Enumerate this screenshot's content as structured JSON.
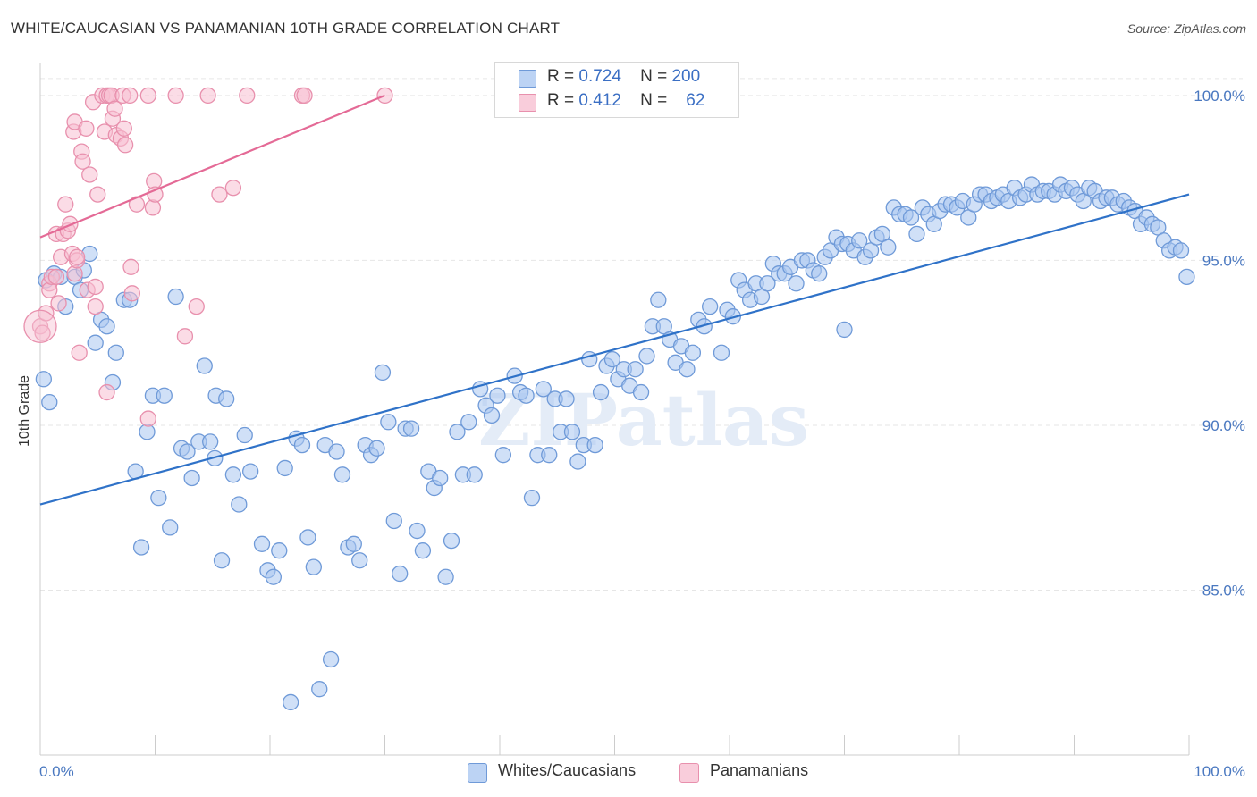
{
  "title": "WHITE/CAUCASIAN VS PANAMANIAN 10TH GRADE CORRELATION CHART",
  "source": "Source: ZipAtlas.com",
  "watermark": "ZIPatlas",
  "legend": {
    "rows": [
      {
        "r_label": "R =",
        "r_value": "0.724",
        "n_label": "N =",
        "n_value": "200"
      },
      {
        "r_label": "R =",
        "r_value": "0.412",
        "n_label": "N =",
        "n_value": "62"
      }
    ]
  },
  "colors": {
    "blue_fill": "#a9c6f0",
    "blue_stroke": "#6f9ad8",
    "blue_line": "#2f72c8",
    "pink_fill": "#f7c0d2",
    "pink_stroke": "#e890ad",
    "pink_line": "#e46a96",
    "grid": "#e6e6e6",
    "tick_text": "#4a78c0"
  },
  "chart_data": {
    "type": "scatter",
    "title": "WHITE/CAUCASIAN VS PANAMANIAN 10TH GRADE CORRELATION CHART",
    "xlabel": "",
    "ylabel": "10th Grade",
    "xlim": [
      0,
      100
    ],
    "ylim": [
      80.0,
      101.0
    ],
    "x_tick_labels": [
      "0.0%",
      "100.0%"
    ],
    "y_ticks": [
      85.0,
      90.0,
      95.0,
      100.0
    ],
    "y_tick_labels": [
      "85.0%",
      "90.0%",
      "95.0%",
      "100.0%"
    ],
    "grid": true,
    "legend_position": "top-center",
    "series": [
      {
        "name": "Whites/Caucasians",
        "color": "#a9c6f0",
        "trend": {
          "x": [
            0,
            100
          ],
          "y": [
            87.6,
            97.0
          ]
        },
        "points": [
          [
            0.3,
            91.4
          ],
          [
            0.8,
            90.7
          ],
          [
            1.2,
            94.6
          ],
          [
            1.8,
            94.5
          ],
          [
            2.2,
            93.6
          ],
          [
            3.0,
            94.5
          ],
          [
            3.5,
            94.1
          ],
          [
            3.8,
            94.7
          ],
          [
            4.3,
            95.2
          ],
          [
            4.8,
            92.5
          ],
          [
            5.3,
            93.2
          ],
          [
            6.3,
            91.3
          ],
          [
            6.6,
            92.2
          ],
          [
            7.3,
            93.8
          ],
          [
            7.8,
            93.8
          ],
          [
            8.3,
            88.6
          ],
          [
            8.8,
            86.3
          ],
          [
            9.3,
            89.8
          ],
          [
            9.8,
            90.9
          ],
          [
            10.3,
            87.8
          ],
          [
            10.8,
            90.9
          ],
          [
            11.3,
            86.9
          ],
          [
            11.8,
            93.9
          ],
          [
            12.3,
            89.3
          ],
          [
            12.8,
            89.2
          ],
          [
            13.2,
            88.4
          ],
          [
            13.8,
            89.5
          ],
          [
            14.3,
            91.8
          ],
          [
            14.8,
            89.5
          ],
          [
            15.3,
            90.9
          ],
          [
            15.8,
            85.9
          ],
          [
            16.2,
            90.8
          ],
          [
            16.8,
            88.5
          ],
          [
            17.3,
            87.6
          ],
          [
            17.8,
            89.7
          ],
          [
            18.3,
            88.6
          ],
          [
            19.3,
            86.4
          ],
          [
            19.8,
            85.6
          ],
          [
            20.3,
            85.4
          ],
          [
            20.8,
            86.2
          ],
          [
            21.3,
            88.7
          ],
          [
            21.8,
            81.6
          ],
          [
            22.3,
            89.6
          ],
          [
            22.8,
            89.4
          ],
          [
            23.3,
            86.6
          ],
          [
            23.8,
            85.7
          ],
          [
            24.3,
            82.0
          ],
          [
            24.8,
            89.4
          ],
          [
            25.3,
            82.9
          ],
          [
            25.8,
            89.2
          ],
          [
            26.3,
            88.5
          ],
          [
            26.8,
            86.3
          ],
          [
            27.3,
            86.4
          ],
          [
            27.8,
            85.9
          ],
          [
            28.3,
            89.4
          ],
          [
            28.8,
            89.1
          ],
          [
            29.3,
            89.3
          ],
          [
            29.8,
            91.6
          ],
          [
            30.3,
            90.1
          ],
          [
            30.8,
            87.1
          ],
          [
            31.3,
            85.5
          ],
          [
            31.8,
            89.9
          ],
          [
            32.3,
            89.9
          ],
          [
            32.8,
            86.8
          ],
          [
            33.3,
            86.2
          ],
          [
            33.8,
            88.6
          ],
          [
            34.3,
            88.1
          ],
          [
            34.8,
            88.4
          ],
          [
            35.3,
            85.4
          ],
          [
            35.8,
            86.5
          ],
          [
            36.3,
            89.8
          ],
          [
            36.8,
            88.5
          ],
          [
            37.3,
            90.1
          ],
          [
            37.8,
            88.5
          ],
          [
            38.3,
            91.1
          ],
          [
            38.8,
            90.6
          ],
          [
            39.3,
            90.3
          ],
          [
            39.8,
            90.9
          ],
          [
            40.3,
            89.1
          ],
          [
            41.3,
            91.5
          ],
          [
            41.8,
            91.0
          ],
          [
            42.3,
            90.9
          ],
          [
            42.8,
            87.8
          ],
          [
            43.3,
            89.1
          ],
          [
            43.8,
            91.1
          ],
          [
            44.3,
            89.1
          ],
          [
            44.8,
            90.8
          ],
          [
            45.3,
            89.8
          ],
          [
            45.8,
            90.8
          ],
          [
            46.3,
            89.8
          ],
          [
            46.8,
            88.9
          ],
          [
            47.3,
            89.4
          ],
          [
            47.8,
            92.0
          ],
          [
            48.3,
            89.4
          ],
          [
            48.8,
            91.0
          ],
          [
            49.3,
            91.8
          ],
          [
            49.8,
            92.0
          ],
          [
            50.3,
            91.4
          ],
          [
            50.8,
            91.7
          ],
          [
            51.3,
            91.2
          ],
          [
            51.8,
            91.7
          ],
          [
            52.3,
            91.0
          ],
          [
            52.8,
            92.1
          ],
          [
            53.3,
            93.0
          ],
          [
            53.8,
            93.8
          ],
          [
            54.3,
            93.0
          ],
          [
            54.8,
            92.6
          ],
          [
            55.3,
            91.9
          ],
          [
            55.8,
            92.4
          ],
          [
            56.3,
            91.7
          ],
          [
            56.8,
            92.2
          ],
          [
            57.3,
            93.2
          ],
          [
            57.8,
            93.0
          ],
          [
            58.3,
            93.6
          ],
          [
            59.3,
            92.2
          ],
          [
            59.8,
            93.5
          ],
          [
            60.3,
            93.3
          ],
          [
            60.8,
            94.4
          ],
          [
            61.3,
            94.1
          ],
          [
            61.8,
            93.8
          ],
          [
            62.3,
            94.3
          ],
          [
            62.8,
            93.9
          ],
          [
            63.3,
            94.3
          ],
          [
            63.8,
            94.9
          ],
          [
            64.3,
            94.6
          ],
          [
            64.8,
            94.6
          ],
          [
            65.3,
            94.8
          ],
          [
            65.8,
            94.3
          ],
          [
            66.3,
            95.0
          ],
          [
            66.8,
            95.0
          ],
          [
            67.3,
            94.7
          ],
          [
            67.8,
            94.6
          ],
          [
            68.3,
            95.1
          ],
          [
            68.8,
            95.3
          ],
          [
            69.3,
            95.7
          ],
          [
            69.8,
            95.5
          ],
          [
            70.3,
            95.5
          ],
          [
            70.8,
            95.3
          ],
          [
            71.3,
            95.6
          ],
          [
            71.8,
            95.1
          ],
          [
            72.3,
            95.3
          ],
          [
            72.8,
            95.7
          ],
          [
            73.3,
            95.8
          ],
          [
            73.8,
            95.4
          ],
          [
            74.3,
            96.6
          ],
          [
            74.8,
            96.4
          ],
          [
            75.3,
            96.4
          ],
          [
            75.8,
            96.3
          ],
          [
            76.3,
            95.8
          ],
          [
            76.8,
            96.6
          ],
          [
            77.3,
            96.4
          ],
          [
            77.8,
            96.1
          ],
          [
            78.3,
            96.5
          ],
          [
            78.8,
            96.7
          ],
          [
            79.3,
            96.7
          ],
          [
            79.8,
            96.6
          ],
          [
            80.3,
            96.8
          ],
          [
            80.8,
            96.3
          ],
          [
            81.3,
            96.7
          ],
          [
            81.8,
            97.0
          ],
          [
            82.3,
            97.0
          ],
          [
            82.8,
            96.8
          ],
          [
            83.3,
            96.9
          ],
          [
            83.8,
            97.0
          ],
          [
            84.3,
            96.8
          ],
          [
            84.8,
            97.2
          ],
          [
            85.3,
            96.9
          ],
          [
            85.8,
            97.0
          ],
          [
            86.3,
            97.3
          ],
          [
            86.8,
            97.0
          ],
          [
            87.3,
            97.1
          ],
          [
            87.8,
            97.1
          ],
          [
            88.3,
            97.0
          ],
          [
            88.8,
            97.3
          ],
          [
            89.3,
            97.1
          ],
          [
            89.8,
            97.2
          ],
          [
            90.3,
            97.0
          ],
          [
            90.8,
            96.8
          ],
          [
            91.3,
            97.2
          ],
          [
            91.8,
            97.1
          ],
          [
            92.3,
            96.8
          ],
          [
            92.8,
            96.9
          ],
          [
            93.3,
            96.9
          ],
          [
            93.8,
            96.7
          ],
          [
            94.3,
            96.8
          ],
          [
            94.8,
            96.6
          ],
          [
            95.3,
            96.5
          ],
          [
            95.8,
            96.1
          ],
          [
            96.3,
            96.3
          ],
          [
            96.8,
            96.1
          ],
          [
            97.3,
            96.0
          ],
          [
            97.8,
            95.6
          ],
          [
            98.3,
            95.3
          ],
          [
            98.8,
            95.4
          ],
          [
            99.3,
            95.3
          ],
          [
            99.8,
            94.5
          ],
          [
            0.5,
            94.4
          ],
          [
            5.8,
            93.0
          ],
          [
            15.2,
            89.0
          ],
          [
            70.0,
            92.9
          ]
        ]
      },
      {
        "name": "Panamanians",
        "color": "#f7c0d2",
        "trend": {
          "x": [
            0,
            30
          ],
          "y": [
            95.7,
            100.0
          ]
        },
        "points": [
          [
            0.0,
            93.0
          ],
          [
            0.2,
            92.8
          ],
          [
            0.5,
            93.4
          ],
          [
            0.8,
            94.3
          ],
          [
            0.8,
            94.1
          ],
          [
            1.0,
            94.5
          ],
          [
            1.4,
            95.8
          ],
          [
            1.6,
            93.7
          ],
          [
            1.8,
            95.1
          ],
          [
            2.0,
            95.8
          ],
          [
            2.2,
            96.7
          ],
          [
            2.4,
            95.9
          ],
          [
            2.6,
            96.1
          ],
          [
            2.8,
            95.2
          ],
          [
            3.0,
            94.6
          ],
          [
            3.2,
            95.0
          ],
          [
            2.9,
            98.9
          ],
          [
            3.0,
            99.2
          ],
          [
            3.2,
            95.1
          ],
          [
            3.4,
            92.2
          ],
          [
            3.6,
            98.3
          ],
          [
            3.7,
            98.0
          ],
          [
            4.0,
            99.0
          ],
          [
            4.1,
            94.1
          ],
          [
            4.3,
            97.6
          ],
          [
            4.6,
            99.8
          ],
          [
            4.8,
            94.2
          ],
          [
            4.8,
            93.6
          ],
          [
            5.0,
            97.0
          ],
          [
            5.4,
            100.0
          ],
          [
            5.6,
            98.9
          ],
          [
            5.8,
            100.0
          ],
          [
            5.8,
            91.0
          ],
          [
            6.0,
            100.0
          ],
          [
            6.2,
            100.0
          ],
          [
            6.3,
            99.3
          ],
          [
            6.5,
            99.6
          ],
          [
            6.6,
            98.8
          ],
          [
            7.0,
            98.7
          ],
          [
            7.2,
            100.0
          ],
          [
            7.3,
            99.0
          ],
          [
            7.4,
            98.5
          ],
          [
            7.8,
            100.0
          ],
          [
            7.9,
            94.8
          ],
          [
            8.0,
            94.0
          ],
          [
            8.4,
            96.7
          ],
          [
            9.4,
            100.0
          ],
          [
            9.4,
            90.2
          ],
          [
            9.8,
            96.6
          ],
          [
            9.9,
            97.4
          ],
          [
            10.0,
            97.0
          ],
          [
            11.8,
            100.0
          ],
          [
            12.6,
            92.7
          ],
          [
            13.6,
            93.6
          ],
          [
            14.6,
            100.0
          ],
          [
            15.6,
            97.0
          ],
          [
            16.8,
            97.2
          ],
          [
            18.0,
            100.0
          ],
          [
            22.8,
            100.0
          ],
          [
            23.0,
            100.0
          ],
          [
            30.0,
            100.0
          ],
          [
            1.4,
            94.5
          ]
        ]
      }
    ]
  },
  "bottom_legend": [
    {
      "label": "Whites/Caucasians"
    },
    {
      "label": "Panamanians"
    }
  ]
}
